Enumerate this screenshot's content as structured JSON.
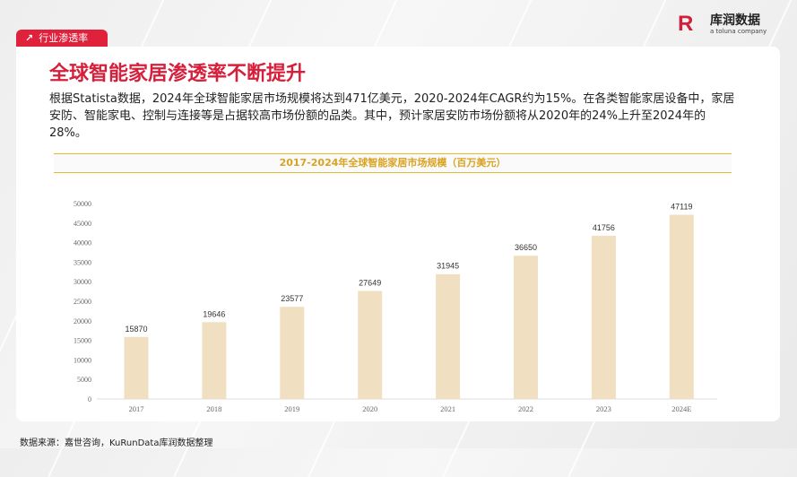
{
  "tag": {
    "icon": "arrow-up-right-icon",
    "label": "行业渗透率"
  },
  "logo": {
    "mark": "R",
    "name": "库润数据",
    "sub": "a toluna company"
  },
  "title": "全球智能家居渗透率不断提升",
  "paragraph": "根据Statista数据，2024年全球智能家居市场规模将达到471亿美元，2020-2024年CAGR约为15%。在各类智能家居设备中，家居安防、智能家电、控制与连接等是占据较高市场份额的品类。其中，预计家居安防市场份额将从2020年的24%上升至2024年的28%。",
  "source": "数据来源：嘉世咨询，KuRunData库润数据整理",
  "colors": {
    "accent": "#d61f3a",
    "bar": "#f0dfc1",
    "title_gold": "#d9a320"
  },
  "chart_data": {
    "type": "bar",
    "title": "2017-2024年全球智能家居市场规模（百万美元）",
    "categories": [
      "2017",
      "2018",
      "2019",
      "2020",
      "2021",
      "2022",
      "2023",
      "2024E"
    ],
    "values": [
      15870,
      19646,
      23577,
      27649,
      31945,
      36650,
      41756,
      47119
    ],
    "yticks": [
      0,
      5000,
      10000,
      15000,
      20000,
      25000,
      30000,
      35000,
      40000,
      45000,
      50000
    ],
    "ylim": [
      0,
      50000
    ],
    "grid": false
  }
}
